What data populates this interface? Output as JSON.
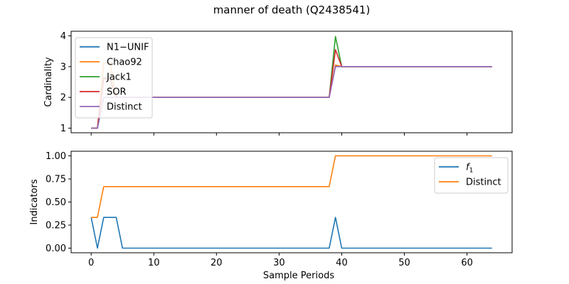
{
  "figure": {
    "title": "manner of death (Q2438541)"
  },
  "chart_data": [
    {
      "type": "line",
      "ylabel": "Cardinality",
      "xlabel": "",
      "xlim": [
        -3.2,
        67.2
      ],
      "ylim": [
        0.85,
        4.15
      ],
      "xticks": [
        0,
        10,
        20,
        30,
        40,
        50,
        60
      ],
      "yticks": [
        1,
        2,
        3,
        4
      ],
      "ytick_labels": [
        "1",
        "2",
        "3",
        "4"
      ],
      "legend_position": "upper-left",
      "series": [
        {
          "name": "N1−UNIF",
          "color": "#1f77b4",
          "points": [
            [
              0,
              1
            ],
            [
              1,
              1
            ],
            [
              2,
              2
            ],
            [
              3,
              2
            ],
            [
              4,
              2
            ],
            [
              5,
              2
            ],
            [
              38,
              2
            ],
            [
              39,
              3.05
            ],
            [
              40,
              3
            ],
            [
              64,
              3
            ]
          ]
        },
        {
          "name": "Chao92",
          "color": "#ff7f0e",
          "points": [
            [
              0,
              1
            ],
            [
              1,
              1
            ],
            [
              2,
              3.12
            ],
            [
              3,
              3.12
            ],
            [
              4,
              2
            ],
            [
              5,
              2
            ],
            [
              38,
              2
            ],
            [
              39,
              3.05
            ],
            [
              40,
              3
            ],
            [
              64,
              3
            ]
          ]
        },
        {
          "name": "Jack1",
          "color": "#2ca02c",
          "points": [
            [
              0,
              1
            ],
            [
              1,
              1
            ],
            [
              2,
              2.65
            ],
            [
              3,
              2.65
            ],
            [
              4,
              2
            ],
            [
              5,
              2
            ],
            [
              38,
              2
            ],
            [
              39,
              3.98
            ],
            [
              40,
              3
            ],
            [
              64,
              3
            ]
          ]
        },
        {
          "name": "SOR",
          "color": "#d62728",
          "points": [
            [
              0,
              1
            ],
            [
              1,
              1
            ],
            [
              2,
              2.6
            ],
            [
              3,
              2.6
            ],
            [
              4,
              2
            ],
            [
              5,
              2
            ],
            [
              38,
              2
            ],
            [
              39,
              3.55
            ],
            [
              40,
              3
            ],
            [
              64,
              3
            ]
          ]
        },
        {
          "name": "Distinct",
          "color": "#9467bd",
          "points": [
            [
              0,
              1
            ],
            [
              1,
              1
            ],
            [
              2,
              2
            ],
            [
              3,
              2
            ],
            [
              4,
              2
            ],
            [
              5,
              2
            ],
            [
              38,
              2
            ],
            [
              39,
              3
            ],
            [
              40,
              3
            ],
            [
              64,
              3
            ]
          ]
        }
      ]
    },
    {
      "type": "line",
      "ylabel": "Indicators",
      "xlabel": "Sample Periods",
      "xlim": [
        -3.2,
        67.2
      ],
      "ylim": [
        -0.05,
        1.05
      ],
      "xticks": [
        0,
        10,
        20,
        30,
        40,
        50,
        60
      ],
      "yticks": [
        0,
        0.25,
        0.5,
        0.75,
        1.0
      ],
      "ytick_labels": [
        "0.00",
        "0.25",
        "0.50",
        "0.75",
        "1.00"
      ],
      "legend_position": "upper-right",
      "series": [
        {
          "name": "f1",
          "color": "#1f77b4",
          "points": [
            [
              0,
              0.333
            ],
            [
              1,
              0
            ],
            [
              2,
              0.333
            ],
            [
              3,
              0.333
            ],
            [
              4,
              0.333
            ],
            [
              5,
              0
            ],
            [
              38,
              0
            ],
            [
              39,
              0.333
            ],
            [
              40,
              0
            ],
            [
              64,
              0
            ]
          ]
        },
        {
          "name": "Distinct",
          "color": "#ff7f0e",
          "points": [
            [
              0,
              0.333
            ],
            [
              1,
              0.333
            ],
            [
              2,
              0.667
            ],
            [
              3,
              0.667
            ],
            [
              38,
              0.667
            ],
            [
              39,
              1.0
            ],
            [
              40,
              1.0
            ],
            [
              64,
              1.0
            ]
          ]
        }
      ]
    }
  ]
}
